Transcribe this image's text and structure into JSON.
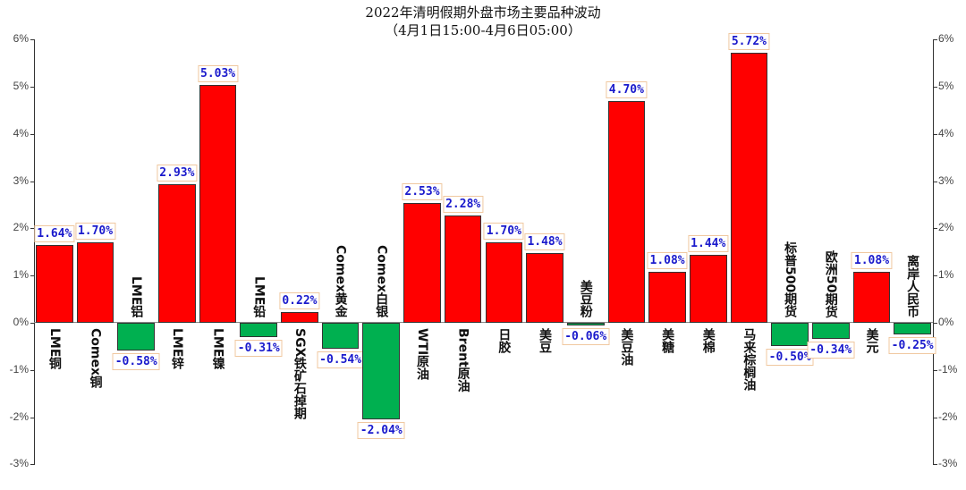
{
  "chart_data": {
    "type": "bar",
    "title": "2022年清明假期外盘市场主要品种波动",
    "subtitle": "（4月1日15:00-4月6日05:00）",
    "xlabel": "",
    "ylabel": "",
    "ylim": [
      -3,
      6
    ],
    "yticks": [
      "6%",
      "5%",
      "4%",
      "3%",
      "2%",
      "1%",
      "0%",
      "-1%",
      "-2%",
      "-3%"
    ],
    "ytick_values": [
      6,
      5,
      4,
      3,
      2,
      1,
      0,
      -1,
      -2,
      -3
    ],
    "categories": [
      "LME铜",
      "Comex铜",
      "LME铝",
      "LME锌",
      "LME镍",
      "LME铅",
      "SGX铁矿石掉期",
      "Comex黄金",
      "Comex白银",
      "WTI原油",
      "Brent原油",
      "日胶",
      "美豆",
      "美豆粉",
      "美豆油",
      "美糖",
      "美棉",
      "马来棕榈油",
      "标普500期货",
      "欧洲50期货",
      "美元",
      "离岸人民币"
    ],
    "values": [
      1.64,
      1.7,
      -0.58,
      2.93,
      5.03,
      -0.31,
      0.22,
      -0.54,
      -2.04,
      2.53,
      2.28,
      1.7,
      1.48,
      -0.06,
      4.7,
      1.08,
      1.44,
      5.72,
      -0.5,
      -0.34,
      1.08,
      -0.25
    ],
    "value_labels": [
      "1.64%",
      "1.70%",
      "-0.58%",
      "2.93%",
      "5.03%",
      "-0.31%",
      "0.22%",
      "-0.54%",
      "-2.04%",
      "2.53%",
      "2.28%",
      "1.70%",
      "1.48%",
      "-0.06%",
      "4.70%",
      "1.08%",
      "1.44%",
      "5.72%",
      "-0.50%",
      "-0.34%",
      "1.08%",
      "-0.25%"
    ],
    "colors": {
      "positive": "#ff0000",
      "negative": "#00b050",
      "label_text": "#1a1acc",
      "label_border": "#f0c8a0"
    },
    "grid": false,
    "legend": "none",
    "dual_axis": true
  }
}
